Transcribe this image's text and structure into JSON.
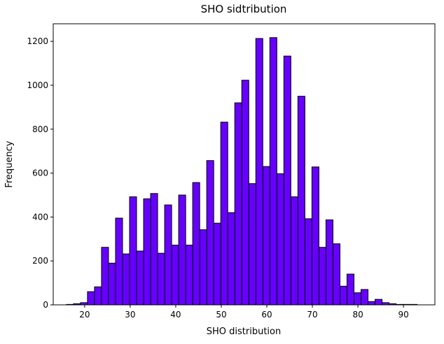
{
  "chart_data": {
    "type": "bar",
    "title": "SHO sidtribution",
    "xlabel": "SHO distribution",
    "ylabel": "Frequency",
    "xlim": [
      13.1,
      96.9
    ],
    "ylim": [
      0,
      1280
    ],
    "xticks": [
      20,
      30,
      40,
      50,
      60,
      70,
      80,
      90
    ],
    "yticks": [
      0,
      200,
      400,
      600,
      800,
      1000,
      1200
    ],
    "grid": false,
    "bar_color": "#6600ff",
    "edge_color": "#000000",
    "bin_start": 16,
    "bin_width": 1.54,
    "values": [
      2,
      5,
      10,
      60,
      82,
      262,
      190,
      395,
      232,
      492,
      245,
      483,
      507,
      235,
      455,
      272,
      500,
      272,
      557,
      342,
      657,
      372,
      832,
      420,
      920,
      1023,
      552,
      1213,
      630,
      1217,
      597,
      1133,
      492,
      950,
      392,
      628,
      262,
      387,
      278,
      85,
      140,
      55,
      70,
      15,
      25,
      10,
      5,
      2,
      2,
      2
    ]
  }
}
